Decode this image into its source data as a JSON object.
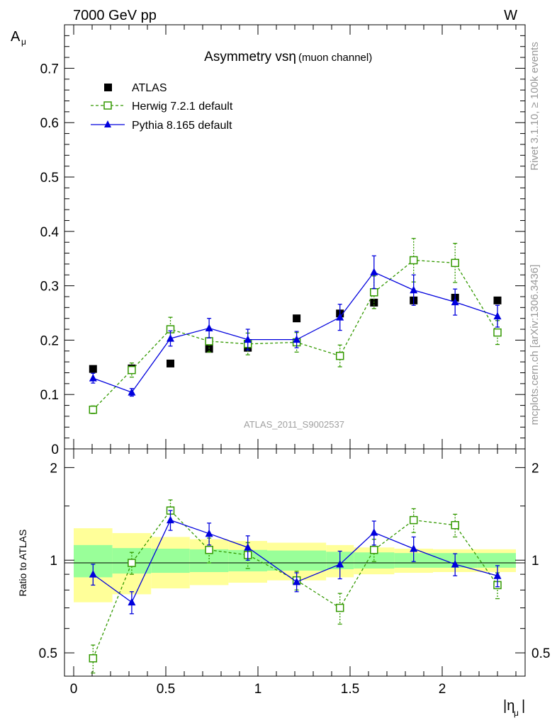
{
  "header": {
    "process_left": "7000 GeV pp",
    "process_right": "W",
    "rivet_label": "Rivet 3.1.10, ≥ 100k events",
    "mcplots_label": "mcplots.cern.ch [arXiv:1306.3436]"
  },
  "colors": {
    "data": "#000000",
    "herwig": "#339900",
    "pythia": "#0000dd",
    "band_inner": "#99ff99",
    "band_outer": "#ffff99"
  },
  "chart_data": [
    {
      "type": "scatter",
      "panel": "main",
      "title": "Asymmetry vsη",
      "title_suffix": "(muon channel)",
      "ylabel": "A",
      "ylabel_sub": "μ",
      "watermark": "ATLAS_2011_S9002537",
      "xlim": [
        -0.05,
        2.45
      ],
      "ylim": [
        0.0,
        0.78
      ],
      "yticks": [
        "0",
        "0.1",
        "0.2",
        "0.3",
        "0.4",
        "0.5",
        "0.6",
        "0.7"
      ],
      "legend_position": "top-left",
      "series": [
        {
          "name": "ATLAS",
          "key": "atlas",
          "marker": "square",
          "x": [
            0.105,
            0.315,
            0.525,
            0.735,
            0.945,
            1.21,
            1.445,
            1.63,
            1.845,
            2.07,
            2.3
          ],
          "y": [
            0.147,
            0.148,
            0.157,
            0.184,
            0.186,
            0.24,
            0.249,
            0.269,
            0.273,
            0.278,
            0.273
          ],
          "err": [
            0.003,
            0.003,
            0.003,
            0.003,
            0.003,
            0.003,
            0.004,
            0.004,
            0.004,
            0.004,
            0.004
          ]
        },
        {
          "name": "Herwig 7.2.1 default",
          "key": "herwig",
          "marker": "open-square",
          "x": [
            0.105,
            0.315,
            0.525,
            0.735,
            0.945,
            1.21,
            1.445,
            1.63,
            1.845,
            2.07,
            2.3
          ],
          "y": [
            0.072,
            0.145,
            0.22,
            0.198,
            0.193,
            0.196,
            0.171,
            0.288,
            0.347,
            0.342,
            0.214
          ],
          "err": [
            0.007,
            0.013,
            0.022,
            0.02,
            0.02,
            0.018,
            0.02,
            0.03,
            0.04,
            0.036,
            0.022
          ]
        },
        {
          "name": "Pythia 8.165 default",
          "key": "pythia",
          "marker": "triangle",
          "x": [
            0.105,
            0.315,
            0.525,
            0.735,
            0.945,
            1.21,
            1.445,
            1.63,
            1.845,
            2.07,
            2.3
          ],
          "y": [
            0.13,
            0.104,
            0.203,
            0.222,
            0.201,
            0.201,
            0.242,
            0.325,
            0.292,
            0.27,
            0.244
          ],
          "err": [
            0.009,
            0.007,
            0.014,
            0.018,
            0.019,
            0.015,
            0.024,
            0.03,
            0.028,
            0.024,
            0.02
          ]
        }
      ]
    },
    {
      "type": "scatter",
      "panel": "ratio",
      "ylabel": "Ratio to ATLAS",
      "xlabel": "|η",
      "xlabel_sub": "μ",
      "xlabel_suffix": "|",
      "xticks": [
        "0",
        "0.5",
        "1",
        "1.5",
        "2"
      ],
      "yticks": [
        "0.5",
        "1",
        "2"
      ],
      "ylim": [
        0.42,
        2.3
      ],
      "yscale": "log",
      "bands": {
        "x_edges": [
          0.0,
          0.21,
          0.42,
          0.63,
          0.84,
          1.05,
          1.37,
          1.52,
          1.74,
          1.95,
          2.19,
          2.4
        ],
        "inner": [
          0.12,
          0.095,
          0.09,
          0.085,
          0.08,
          0.075,
          0.065,
          0.06,
          0.055,
          0.055,
          0.055
        ],
        "outer": [
          0.27,
          0.225,
          0.19,
          0.17,
          0.155,
          0.14,
          0.12,
          0.1,
          0.09,
          0.085,
          0.085
        ]
      },
      "series": [
        {
          "name": "Herwig 7.2.1 default",
          "key": "herwig",
          "marker": "open-square",
          "x": [
            0.105,
            0.315,
            0.525,
            0.735,
            0.945,
            1.21,
            1.445,
            1.63,
            1.845,
            2.07,
            2.3
          ],
          "y": [
            0.48,
            0.98,
            1.45,
            1.08,
            1.04,
            0.86,
            0.7,
            1.08,
            1.35,
            1.3,
            0.83
          ],
          "err": [
            0.05,
            0.08,
            0.12,
            0.1,
            0.1,
            0.06,
            0.08,
            0.09,
            0.12,
            0.11,
            0.08
          ]
        },
        {
          "name": "Pythia 8.165 default",
          "key": "pythia",
          "marker": "triangle",
          "x": [
            0.105,
            0.315,
            0.525,
            0.735,
            0.945,
            1.21,
            1.445,
            1.63,
            1.845,
            2.07,
            2.3
          ],
          "y": [
            0.9,
            0.73,
            1.35,
            1.22,
            1.1,
            0.85,
            0.97,
            1.23,
            1.09,
            0.97,
            0.89
          ],
          "err": [
            0.07,
            0.06,
            0.1,
            0.1,
            0.1,
            0.06,
            0.1,
            0.11,
            0.1,
            0.08,
            0.07
          ]
        }
      ]
    }
  ]
}
